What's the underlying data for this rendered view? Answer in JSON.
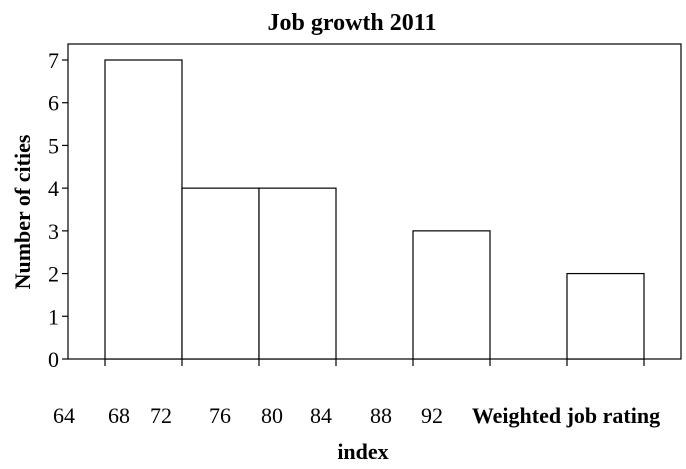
{
  "chart_data": {
    "type": "bar",
    "title": "Job growth 2011",
    "xlabel_line1": "Weighted job rating",
    "xlabel_line2": "index",
    "ylabel": "Number of cities",
    "x_tick_labels": [
      "64",
      "68",
      "72",
      "76",
      "80",
      "84",
      "88",
      "92"
    ],
    "bins": [
      {
        "start": 64,
        "end": 68,
        "value": 7
      },
      {
        "start": 68,
        "end": 72,
        "value": 4
      },
      {
        "start": 72,
        "end": 76,
        "value": 4
      },
      {
        "start": 76,
        "end": 80,
        "value": 0
      },
      {
        "start": 80,
        "end": 84,
        "value": 3
      },
      {
        "start": 84,
        "end": 88,
        "value": 0
      },
      {
        "start": 88,
        "end": 92,
        "value": 2
      }
    ],
    "ylim": [
      0,
      7.8
    ],
    "yticks": [
      0,
      1,
      2,
      3,
      4,
      5,
      6,
      7
    ],
    "grid": false,
    "colors": {
      "bar_fill": "#ffffff",
      "bar_stroke": "#000000",
      "axis": "#000000",
      "text": "#000000"
    }
  }
}
